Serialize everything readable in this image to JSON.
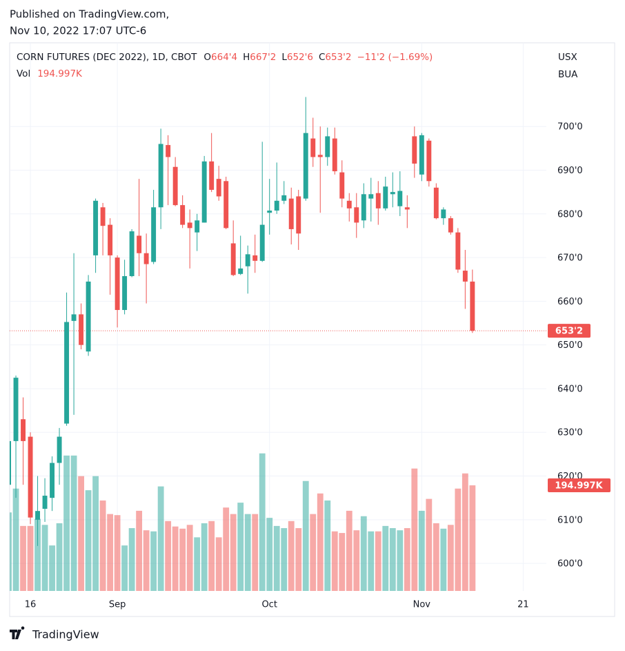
{
  "published": "Published on TradingView.com,",
  "timestamp": "Nov 10, 2022 17:07 UTC-6",
  "brand": "TradingView",
  "chart_data": {
    "type": "candlestick",
    "title": "CORN FUTURES (DEC 2022), 1D, CBOT",
    "legend": [
      {
        "key": "O",
        "label": "664'4"
      },
      {
        "key": "H",
        "label": "667'2"
      },
      {
        "key": "L",
        "label": "652'6"
      },
      {
        "key": "C",
        "label": "653'2"
      }
    ],
    "change": "−11'2 (−1.69%)",
    "volume_legend": {
      "key": "Vol",
      "label": "194.997K"
    },
    "currency": "USX",
    "unit": "BUA",
    "colors": {
      "up": "#26a69a",
      "down": "#ef5350"
    },
    "open": [
      618,
      628,
      633,
      629,
      610,
      612.5,
      615,
      623,
      632,
      655.5,
      657,
      648.5,
      670.5,
      681.5,
      677.5,
      670,
      658,
      665.75,
      675,
      671,
      669,
      681.5,
      695.75,
      690.75,
      682,
      678,
      675.75,
      678,
      692,
      688,
      687.5,
      673.25,
      666.25,
      668,
      670.5,
      669.25,
      680.25,
      680.75,
      683,
      683.5,
      684,
      683.5,
      697.25,
      693.5,
      693,
      697.25,
      689.5,
      683,
      681.5,
      678.5,
      683.5,
      684.75,
      681.25,
      684.5,
      681.75,
      681.5,
      697.75,
      689,
      696.75,
      686,
      679,
      679,
      675.75,
      667,
      664.5
    ],
    "high": [
      629,
      643,
      638,
      630,
      620,
      619.5,
      624.5,
      631,
      662,
      671,
      659.5,
      666,
      683.5,
      682.5,
      679,
      670.5,
      669.5,
      676.5,
      688,
      675.5,
      685.5,
      699.5,
      698,
      693,
      684.25,
      681,
      680,
      693.25,
      698.5,
      691,
      688.5,
      678.5,
      675,
      672.75,
      675.25,
      696.5,
      688,
      691.75,
      687.5,
      686,
      685.5,
      706.75,
      702,
      700,
      699.75,
      699.75,
      692.25,
      684.75,
      684.75,
      687,
      688.25,
      687.5,
      688.5,
      689.5,
      689.75,
      684.25,
      700,
      698.5,
      697.25,
      687,
      681.5,
      679.5,
      676.75,
      671.75,
      667.25
    ],
    "low": [
      617,
      615,
      618,
      609,
      604,
      609.5,
      612,
      618,
      631.5,
      634,
      649,
      647.5,
      666.5,
      670.5,
      661.5,
      654,
      657,
      665.5,
      665.75,
      659.5,
      668.5,
      676.5,
      682,
      681.75,
      676.75,
      667.5,
      671.5,
      678,
      685,
      683,
      676.5,
      665.75,
      666,
      661.75,
      666.5,
      669,
      675.25,
      680,
      682.25,
      673,
      671.75,
      683,
      690.75,
      680.25,
      691,
      689,
      681.5,
      678.25,
      674.5,
      676.75,
      678.25,
      677.5,
      680.75,
      681.5,
      679.5,
      676.75,
      688.25,
      687.5,
      686.25,
      678.75,
      677.5,
      675.25,
      666.5,
      658.25,
      652.75
    ],
    "close": [
      628,
      642.5,
      628,
      610.5,
      612,
      615.5,
      623,
      629,
      655.25,
      657,
      650,
      664.5,
      683,
      677.25,
      670.5,
      658,
      665.75,
      676,
      671,
      668.5,
      681.5,
      696,
      693,
      682,
      677.5,
      676.75,
      678.5,
      692,
      685.5,
      684,
      676.75,
      666,
      667.5,
      670.75,
      669.25,
      677.5,
      680.75,
      683,
      684.25,
      676.5,
      675.5,
      698.5,
      693,
      693,
      697.75,
      689.75,
      683.5,
      681.25,
      678,
      684.5,
      684.5,
      681.25,
      686.25,
      685,
      685.25,
      681,
      691.5,
      698,
      687.5,
      679,
      681,
      675.75,
      667.25,
      664.5,
      653.25
    ],
    "volume": [
      145000,
      189000,
      120000,
      120000,
      133000,
      122000,
      84000,
      125000,
      250000,
      250000,
      212000,
      186000,
      212000,
      167000,
      142000,
      140000,
      84000,
      116000,
      148000,
      112000,
      110000,
      193000,
      129000,
      119000,
      115000,
      122000,
      99000,
      125000,
      129000,
      99000,
      154000,
      142000,
      163000,
      142000,
      142000,
      254000,
      135000,
      120000,
      116000,
      129000,
      116000,
      203000,
      142000,
      180000,
      167000,
      110000,
      107000,
      148000,
      112000,
      138000,
      110000,
      110000,
      120000,
      116000,
      112000,
      116000,
      226000,
      148000,
      170000,
      125000,
      115000,
      122000,
      189000,
      217000,
      194997
    ],
    "ylim": [
      593.7,
      710.3
    ],
    "yticks": [
      {
        "value": 600,
        "label": "600'0"
      },
      {
        "value": 610,
        "label": "610'0"
      },
      {
        "value": 620,
        "label": "620'0"
      },
      {
        "value": 630,
        "label": "630'0"
      },
      {
        "value": 640,
        "label": "640'0"
      },
      {
        "value": 650,
        "label": "650'0"
      },
      {
        "value": 660,
        "label": "660'0"
      },
      {
        "value": 670,
        "label": "670'0"
      },
      {
        "value": 680,
        "label": "680'0"
      },
      {
        "value": 690,
        "label": "690'0"
      },
      {
        "value": 700,
        "label": "700'0"
      }
    ],
    "xlim": [
      0.14,
      74.2
    ],
    "xticks": [
      {
        "value": 3,
        "label": "16"
      },
      {
        "value": 15,
        "label": "Sep"
      },
      {
        "value": 36,
        "label": "Oct"
      },
      {
        "value": 57,
        "label": "Nov"
      },
      {
        "value": 71,
        "label": "21"
      }
    ],
    "last_price": {
      "value": 653.25,
      "label": "653'2"
    },
    "last_volume": {
      "value": 194997,
      "label": "194.997K"
    },
    "grid": true
  }
}
